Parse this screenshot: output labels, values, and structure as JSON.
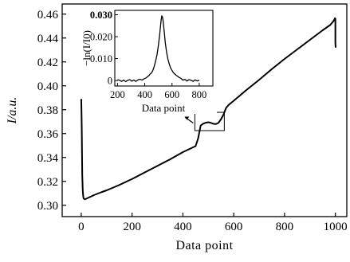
{
  "chart_data": [
    {
      "id": "main",
      "type": "line",
      "title": "",
      "xlabel": "Data point",
      "ylabel": "I/a.u.",
      "xlim": [
        -75,
        1045
      ],
      "ylim": [
        0.2905,
        0.4685
      ],
      "xticks": [
        0,
        200,
        400,
        600,
        800,
        1000
      ],
      "xtick_labels": [
        "0",
        "200",
        "400",
        "600",
        "800",
        "1000"
      ],
      "yticks": [
        0.3,
        0.32,
        0.34,
        0.36,
        0.38,
        0.4,
        0.42,
        0.44,
        0.46
      ],
      "ytick_labels": [
        "0.30",
        "0.32",
        "0.34",
        "0.36",
        "0.38",
        "0.40",
        "0.42",
        "0.44",
        "0.46"
      ],
      "grid": false,
      "series": [
        {
          "color": "#000000",
          "x": [
            0,
            1,
            2,
            3,
            4,
            6,
            8,
            10,
            15,
            20,
            30,
            50,
            80,
            100,
            150,
            200,
            250,
            300,
            350,
            400,
            430,
            450,
            460,
            470,
            480,
            490,
            500,
            510,
            520,
            530,
            540,
            550,
            560,
            570,
            580,
            600,
            650,
            700,
            750,
            800,
            850,
            900,
            950,
            980,
            990,
            995,
            998,
            999,
            1000,
            1000,
            1001
          ],
          "y": [
            0.389,
            0.378,
            0.365,
            0.345,
            0.325,
            0.312,
            0.307,
            0.3055,
            0.305,
            0.3055,
            0.3065,
            0.3085,
            0.311,
            0.3125,
            0.317,
            0.322,
            0.3275,
            0.333,
            0.3385,
            0.3445,
            0.3475,
            0.3495,
            0.356,
            0.3668,
            0.3683,
            0.3691,
            0.3695,
            0.369,
            0.3682,
            0.368,
            0.369,
            0.372,
            0.376,
            0.3815,
            0.384,
            0.3875,
            0.3965,
            0.405,
            0.414,
            0.4225,
            0.4305,
            0.4385,
            0.4465,
            0.451,
            0.4535,
            0.455,
            0.4565,
            0.4565,
            0.4562,
            0.436,
            0.432
          ]
        }
      ]
    },
    {
      "id": "inset",
      "type": "line",
      "title": "",
      "xlabel": "Data point",
      "ylabel": "−ln(I/I0)",
      "xlim": [
        180,
        900
      ],
      "ylim": [
        -0.0025,
        0.032
      ],
      "xticks": [
        200,
        400,
        600,
        800
      ],
      "xtick_labels": [
        "200",
        "400",
        "600",
        "800"
      ],
      "yticks": [
        0,
        0.01,
        0.02,
        0.03
      ],
      "ytick_labels": [
        "0",
        "0.010",
        "0.020",
        "0.030"
      ],
      "grid": false,
      "series": [
        {
          "color": "#000000",
          "x": [
            200,
            215,
            230,
            245,
            260,
            275,
            290,
            305,
            320,
            335,
            350,
            365,
            380,
            395,
            410,
            420,
            430,
            440,
            450,
            460,
            470,
            480,
            490,
            500,
            510,
            515,
            520,
            525,
            530,
            535,
            540,
            545,
            550,
            560,
            570,
            580,
            590,
            600,
            610,
            620,
            630,
            640,
            650,
            665,
            680,
            695,
            710,
            725,
            740,
            755,
            770,
            785,
            800
          ],
          "y": [
            0.0004,
            0.0001,
            -0.0004,
            0.0002,
            -0.0005,
            0.0001,
            0.0004,
            -0.0003,
            0.0002,
            -0.0004,
            0.0003,
            0.0006,
            0.0002,
            0.0008,
            0.0012,
            0.0018,
            0.0022,
            0.003,
            0.0035,
            0.0047,
            0.0066,
            0.009,
            0.0118,
            0.016,
            0.0212,
            0.0245,
            0.0275,
            0.0295,
            0.029,
            0.027,
            0.024,
            0.021,
            0.0175,
            0.013,
            0.0097,
            0.0075,
            0.0057,
            0.0046,
            0.0036,
            0.003,
            0.0024,
            0.002,
            0.0015,
            0.001,
            0.0002,
            0.0005,
            -0.0002,
            0.0004,
            0.0001,
            -0.0004,
            0.0003,
            -0.0002,
            0.0001
          ]
        }
      ]
    }
  ]
}
